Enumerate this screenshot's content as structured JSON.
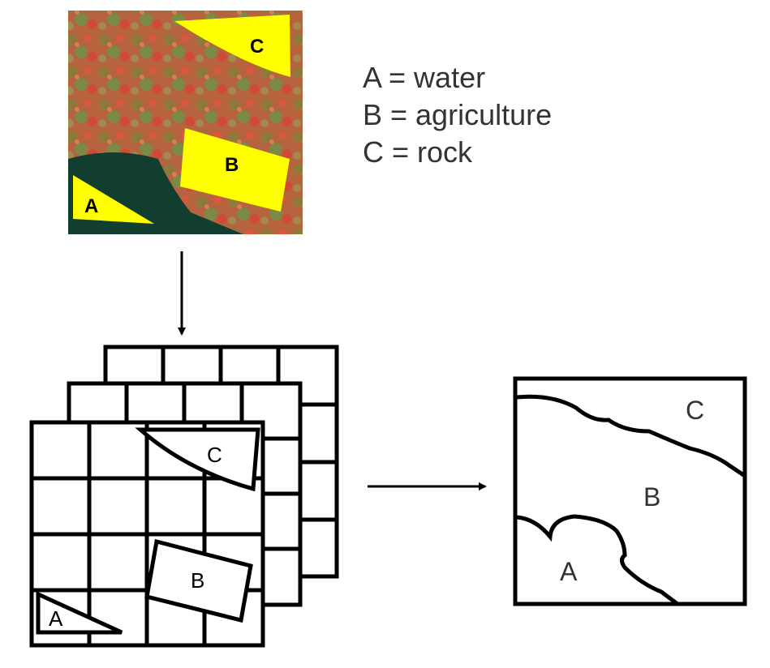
{
  "legend": [
    {
      "letter": "A",
      "text": "A = water"
    },
    {
      "letter": "B",
      "text": "B = agriculture"
    },
    {
      "letter": "C",
      "text": "C = rock"
    }
  ],
  "satellite_image": {
    "labels": {
      "a": "A",
      "b": "B",
      "c": "C"
    },
    "colors": {
      "terrain": "#b5643f",
      "vegetation": "#6f8a3e",
      "water": "#123e30",
      "training_area": "#ffff00"
    }
  },
  "grid_stack": {
    "labels": {
      "a": "A",
      "b": "B",
      "c": "C"
    }
  },
  "classified_map": {
    "labels": {
      "a": "A",
      "b": "B",
      "c": "C"
    }
  }
}
